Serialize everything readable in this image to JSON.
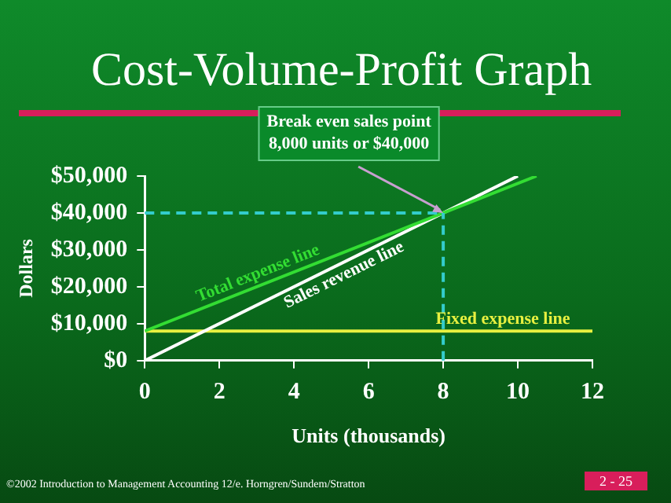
{
  "chart_data": {
    "type": "line",
    "title": "Cost-Volume-Profit Graph",
    "xlabel": "Units (thousands)",
    "ylabel": "Dollars",
    "series": [
      {
        "name": "Total expense line",
        "color": "#33dd33",
        "x": [
          0,
          10.5
        ],
        "values": [
          8000,
          50000
        ]
      },
      {
        "name": "Sales revenue line",
        "color": "#ffffff",
        "x": [
          0,
          10
        ],
        "values": [
          0,
          50000
        ]
      },
      {
        "name": "Fixed expense line",
        "color": "#e8f040",
        "x": [
          0,
          12
        ],
        "values": [
          8000,
          8000
        ]
      }
    ],
    "xlim": [
      0,
      12
    ],
    "xticks": [
      0,
      2,
      4,
      6,
      8,
      10,
      12
    ],
    "ylim": [
      0,
      50000
    ],
    "yticks": [
      {
        "value": 0,
        "label": "$0"
      },
      {
        "value": 10000,
        "label": "$10,000"
      },
      {
        "value": 20000,
        "label": "$20,000"
      },
      {
        "value": 30000,
        "label": "$30,000"
      },
      {
        "value": 40000,
        "label": "$40,000"
      },
      {
        "value": 50000,
        "label": "$50,000"
      }
    ],
    "ref_lines": [
      {
        "axis": "y",
        "value": 40000,
        "color": "#33cccc",
        "line_style": "dashed"
      },
      {
        "axis": "x",
        "value": 8,
        "color": "#33cccc",
        "line_style": "dashed"
      }
    ],
    "annotations": [
      {
        "text": "Break even sales point\n8,000 units or $40,000",
        "x": 8,
        "y": 40000
      },
      "©2002 Introduction to Management Accounting 12/e. Horngren/Sundem/Stratton",
      "2 - 25"
    ],
    "grid": false,
    "legend": false,
    "marker": "none",
    "line_style": "solid"
  }
}
